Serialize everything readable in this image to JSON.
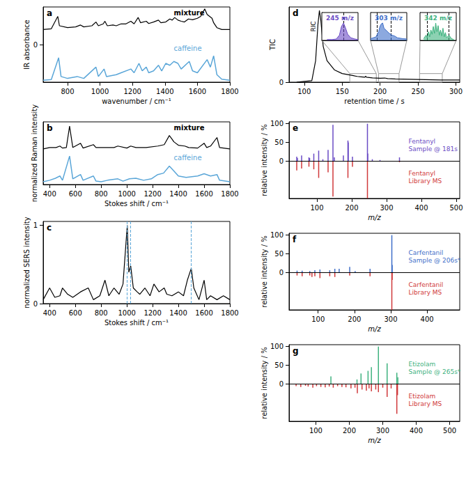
{
  "chart_data": [
    {
      "panel": "a",
      "type": "line",
      "xlabel": "wavenumber / cm⁻¹",
      "ylabel": "IR absorbance",
      "xlim": [
        650,
        1800
      ],
      "xticks": [
        800,
        1000,
        1200,
        1400,
        1600,
        1800
      ],
      "ylim": [
        -1,
        1
      ],
      "yticks": [
        0
      ],
      "series": [
        {
          "name": "mixture",
          "color": "#000000",
          "x": [
            650,
            700,
            740,
            750,
            800,
            850,
            880,
            900,
            950,
            975,
            990,
            1020,
            1030,
            1045,
            1080,
            1100,
            1130,
            1160,
            1190,
            1210,
            1235,
            1250,
            1285,
            1300,
            1330,
            1360,
            1375,
            1405,
            1430,
            1445,
            1460,
            1480,
            1500,
            1520,
            1545,
            1570,
            1600,
            1620,
            1645,
            1660,
            1690,
            1700,
            1720,
            1750,
            1800
          ],
          "values": [
            0.4,
            0.42,
            0.75,
            0.5,
            0.45,
            0.47,
            0.52,
            0.47,
            0.5,
            0.6,
            0.5,
            0.55,
            0.62,
            0.5,
            0.52,
            0.5,
            0.55,
            0.55,
            0.62,
            0.55,
            0.72,
            0.58,
            0.62,
            0.56,
            0.6,
            0.65,
            0.58,
            0.6,
            0.68,
            0.65,
            0.72,
            0.65,
            0.62,
            0.6,
            0.68,
            0.66,
            0.7,
            0.75,
            0.95,
            0.8,
            0.7,
            0.58,
            0.45,
            0.4,
            0.4
          ]
        },
        {
          "name": "caffeine",
          "color": "#5aa6d8",
          "x": [
            650,
            700,
            745,
            760,
            800,
            860,
            900,
            975,
            990,
            1025,
            1040,
            1100,
            1130,
            1190,
            1210,
            1240,
            1260,
            1285,
            1300,
            1330,
            1360,
            1380,
            1405,
            1430,
            1455,
            1480,
            1500,
            1550,
            1570,
            1600,
            1660,
            1680,
            1700,
            1720,
            1750,
            1800
          ],
          "values": [
            -0.95,
            -0.93,
            -0.35,
            -0.85,
            -0.9,
            -0.85,
            -0.9,
            -0.6,
            -0.85,
            -0.65,
            -0.85,
            -0.8,
            -0.75,
            -0.65,
            -0.75,
            -0.5,
            -0.7,
            -0.6,
            -0.75,
            -0.7,
            -0.55,
            -0.7,
            -0.5,
            -0.55,
            -0.45,
            -0.5,
            -0.65,
            -0.45,
            -0.7,
            -0.75,
            -0.4,
            -0.6,
            -0.3,
            -0.8,
            -0.92,
            -0.95
          ]
        }
      ]
    },
    {
      "panel": "b",
      "type": "line",
      "xlabel": "Stokes shift / cm⁻¹",
      "ylabel": "normalized Raman intensity",
      "xlim": [
        350,
        1800
      ],
      "xticks": [
        400,
        600,
        800,
        1000,
        1200,
        1400,
        1600,
        1800
      ],
      "ylim": [
        0,
        2.2
      ],
      "tick_labels": "x",
      "series": [
        {
          "name": "mixture",
          "color": "#000000",
          "x": [
            350,
            400,
            450,
            480,
            500,
            530,
            555,
            580,
            640,
            660,
            740,
            760,
            820,
            900,
            930,
            1000,
            1030,
            1070,
            1150,
            1240,
            1290,
            1330,
            1350,
            1365,
            1400,
            1450,
            1480,
            1550,
            1600,
            1620,
            1650,
            1700,
            1720,
            1800
          ],
          "values": [
            1.25,
            1.3,
            1.3,
            1.35,
            1.28,
            1.3,
            2.05,
            1.3,
            1.45,
            1.28,
            1.4,
            1.3,
            1.3,
            1.3,
            1.35,
            1.28,
            1.35,
            1.3,
            1.3,
            1.35,
            1.4,
            1.72,
            1.6,
            1.5,
            1.38,
            1.35,
            1.3,
            1.28,
            1.45,
            1.3,
            1.35,
            1.65,
            1.3,
            1.25
          ]
        },
        {
          "name": "caffeine",
          "color": "#5aa6d8",
          "x": [
            350,
            400,
            445,
            480,
            500,
            555,
            580,
            640,
            660,
            740,
            760,
            800,
            850,
            930,
            970,
            1020,
            1070,
            1130,
            1190,
            1240,
            1285,
            1330,
            1360,
            1400,
            1460,
            1550,
            1600,
            1650,
            1700,
            1720,
            1800
          ],
          "values": [
            0.1,
            0.15,
            0.22,
            0.3,
            0.15,
            1.0,
            0.2,
            0.35,
            0.15,
            0.3,
            0.12,
            0.1,
            0.15,
            0.2,
            0.12,
            0.2,
            0.22,
            0.15,
            0.2,
            0.35,
            0.4,
            0.65,
            0.5,
            0.3,
            0.25,
            0.3,
            0.38,
            0.3,
            0.35,
            0.15,
            0.1
          ]
        }
      ]
    },
    {
      "panel": "c",
      "type": "line",
      "xlabel": "Stokes shift / cm⁻¹",
      "ylabel": "normalized SERS intensity",
      "xlim": [
        350,
        1800
      ],
      "xticks": [
        400,
        600,
        800,
        1000,
        1200,
        1400,
        1600,
        1800
      ],
      "ylim": [
        0,
        1.05
      ],
      "yticks": [
        0,
        1
      ],
      "vlines": [
        1003,
        1030,
        1500
      ],
      "vline_color": "#5aa6d8",
      "series": [
        {
          "color": "#000000",
          "x": [
            350,
            400,
            440,
            480,
            500,
            540,
            580,
            640,
            700,
            740,
            790,
            830,
            860,
            900,
            940,
            970,
            1003,
            1015,
            1030,
            1050,
            1080,
            1100,
            1140,
            1180,
            1210,
            1250,
            1290,
            1310,
            1350,
            1400,
            1440,
            1470,
            1500,
            1520,
            1560,
            1600,
            1620,
            1650,
            1700,
            1750,
            1800
          ],
          "values": [
            0.05,
            0.2,
            0.08,
            0.1,
            0.2,
            0.12,
            0.08,
            0.15,
            0.2,
            0.05,
            0.1,
            0.3,
            0.1,
            0.2,
            0.12,
            0.25,
            1.0,
            0.4,
            0.48,
            0.2,
            0.15,
            0.12,
            0.2,
            0.1,
            0.25,
            0.15,
            0.2,
            0.12,
            0.1,
            0.15,
            0.1,
            0.3,
            0.45,
            0.2,
            0.05,
            0.3,
            0.05,
            0.1,
            0.05,
            0.1,
            0.05
          ]
        }
      ]
    },
    {
      "panel": "d",
      "type": "line",
      "xlabel": "retention time / s",
      "ylabel": "TIC",
      "xlim": [
        80,
        305
      ],
      "xticks": [
        100,
        150,
        200,
        250,
        300
      ],
      "ylim": [
        0,
        1.05
      ],
      "yticks": [
        0
      ],
      "series": [
        {
          "color": "#000000",
          "x": [
            90,
            100,
            110,
            115,
            118,
            120,
            122,
            125,
            130,
            140,
            150,
            160,
            170,
            175,
            180,
            181,
            182,
            190,
            200,
            206,
            210,
            220,
            240,
            260,
            280,
            300,
            305
          ],
          "values": [
            0,
            0.01,
            0.02,
            0.3,
            0.8,
            1.0,
            0.85,
            0.5,
            0.3,
            0.17,
            0.12,
            0.1,
            0.08,
            0.075,
            0.07,
            0.085,
            0.07,
            0.06,
            0.055,
            0.058,
            0.05,
            0.045,
            0.04,
            0.035,
            0.03,
            0.03,
            0.03
          ]
        }
      ],
      "region_ylim": [
        0,
        0.12
      ],
      "insets": [
        {
          "label": "245 m/z",
          "ylabel": "RIC",
          "color": "#6a4bc4",
          "xlim": [
            160,
            195
          ],
          "ylim": [
            0,
            1.6
          ],
          "vlines": [
            181
          ],
          "x": [
            165,
            170,
            174,
            177,
            179,
            181,
            183,
            185,
            188,
            192,
            195
          ],
          "values": [
            0.05,
            0.05,
            0.08,
            0.3,
            0.8,
            1.0,
            0.7,
            0.35,
            0.15,
            0.08,
            0.05
          ]
        },
        {
          "label": "303 m/z",
          "color": "#3f6fc9",
          "xlim": [
            198,
            225
          ],
          "ylim": [
            0,
            1.6
          ],
          "vlines": [
            203,
            213
          ],
          "x": [
            198,
            202,
            204,
            205,
            206,
            207,
            208,
            210,
            212,
            214,
            216,
            218,
            222,
            225
          ],
          "values": [
            0.1,
            0.2,
            0.5,
            0.8,
            0.95,
            1.0,
            0.7,
            0.55,
            0.4,
            0.3,
            0.25,
            0.15,
            0.1,
            0.08
          ]
        },
        {
          "label": "342 m/z",
          "color": "#3fb27f",
          "xlim": [
            252,
            282
          ],
          "ylim": [
            0,
            1.6
          ],
          "vlines": [
            258,
            276
          ],
          "x": [
            255,
            256,
            257,
            258,
            259,
            260,
            261,
            262,
            263,
            264,
            265,
            266,
            267,
            268,
            269,
            270,
            271,
            272,
            273,
            274,
            276,
            278,
            280
          ],
          "values": [
            0.1,
            0.2,
            0.3,
            0.15,
            0.5,
            0.2,
            0.6,
            0.35,
            0.8,
            0.4,
            1.0,
            0.5,
            0.85,
            0.3,
            0.6,
            0.25,
            0.7,
            0.2,
            0.45,
            0.15,
            0.3,
            0.1,
            0.05
          ]
        }
      ]
    },
    {
      "panel": "e",
      "type": "bar",
      "xlabel": "m/z",
      "ylabel": "relative intensity / %",
      "xlim": [
        20,
        510
      ],
      "xticks": [
        100,
        200,
        300,
        400,
        500
      ],
      "ylim": [
        -100,
        105
      ],
      "yticks": [
        0,
        50,
        100
      ],
      "series": [
        {
          "name": "Fentanyl\nSample @ 181s",
          "color": "#6a4bc4",
          "x": [
            42,
            44,
            56,
            77,
            79,
            91,
            105,
            117,
            132,
            146,
            150,
            176,
            189,
            190,
            202,
            245,
            246,
            259,
            281,
            337
          ],
          "values": [
            12,
            8,
            15,
            10,
            8,
            20,
            28,
            5,
            30,
            97,
            10,
            15,
            55,
            50,
            12,
            100,
            20,
            5,
            3,
            10
          ]
        },
        {
          "name": "Fentanyl\nLibrary MS",
          "color": "#d0393b",
          "x": [
            42,
            56,
            77,
            91,
            105,
            132,
            146,
            189,
            202,
            245,
            337
          ],
          "values": [
            -25,
            -20,
            -15,
            -22,
            -45,
            -30,
            -95,
            -45,
            -15,
            -100,
            -3
          ]
        }
      ]
    },
    {
      "panel": "f",
      "type": "bar",
      "xlabel": "m/z",
      "ylabel": "relative intensity / %",
      "xlim": [
        20,
        490
      ],
      "xticks": [
        100,
        200,
        300,
        400
      ],
      "ylim": [
        -100,
        105
      ],
      "yticks": [
        0,
        50,
        100
      ],
      "series": [
        {
          "name": "Carfentanil\nSample @ 206s*",
          "color": "#3f6fc9",
          "x": [
            42,
            56,
            77,
            91,
            105,
            132,
            146,
            158,
            187,
            202,
            243,
            303,
            304
          ],
          "values": [
            5,
            5,
            4,
            6,
            8,
            6,
            10,
            10,
            15,
            4,
            10,
            100,
            20
          ]
        },
        {
          "name": "Carfentanil\nLibrary MS",
          "color": "#d0393b",
          "x": [
            42,
            56,
            77,
            83,
            91,
            105,
            132,
            146,
            187,
            243,
            303,
            304
          ],
          "values": [
            -8,
            -10,
            -8,
            -12,
            -10,
            -15,
            -10,
            -12,
            -8,
            -10,
            -100,
            -20
          ]
        }
      ]
    },
    {
      "panel": "g",
      "type": "bar",
      "xlabel": "m/z",
      "ylabel": "relative intensity / %",
      "xlim": [
        20,
        530
      ],
      "xticks": [
        100,
        200,
        300,
        400,
        500
      ],
      "ylim": [
        -100,
        105
      ],
      "yticks": [
        0,
        50,
        100
      ],
      "series": [
        {
          "name": "Etizolam\nSample @ 265s*",
          "color": "#3fb27f",
          "x": [
            145,
            223,
            235,
            256,
            266,
            287,
            313,
            342,
            345
          ],
          "values": [
            20,
            12,
            28,
            35,
            45,
            100,
            55,
            30,
            18
          ]
        },
        {
          "name": "Etizolam\nLibrary MS",
          "color": "#d0393b",
          "x": [
            41,
            55,
            69,
            77,
            91,
            102,
            115,
            128,
            140,
            152,
            165,
            178,
            190,
            205,
            217,
            224,
            238,
            251,
            259,
            266,
            279,
            287,
            300,
            313,
            325,
            342,
            344
          ],
          "values": [
            -6,
            -8,
            -5,
            -7,
            -10,
            -6,
            -8,
            -9,
            -7,
            -10,
            -6,
            -8,
            -9,
            -12,
            -10,
            -25,
            -15,
            -18,
            -12,
            -20,
            -15,
            -22,
            -10,
            -35,
            -12,
            -80,
            -30
          ]
        }
      ]
    }
  ]
}
